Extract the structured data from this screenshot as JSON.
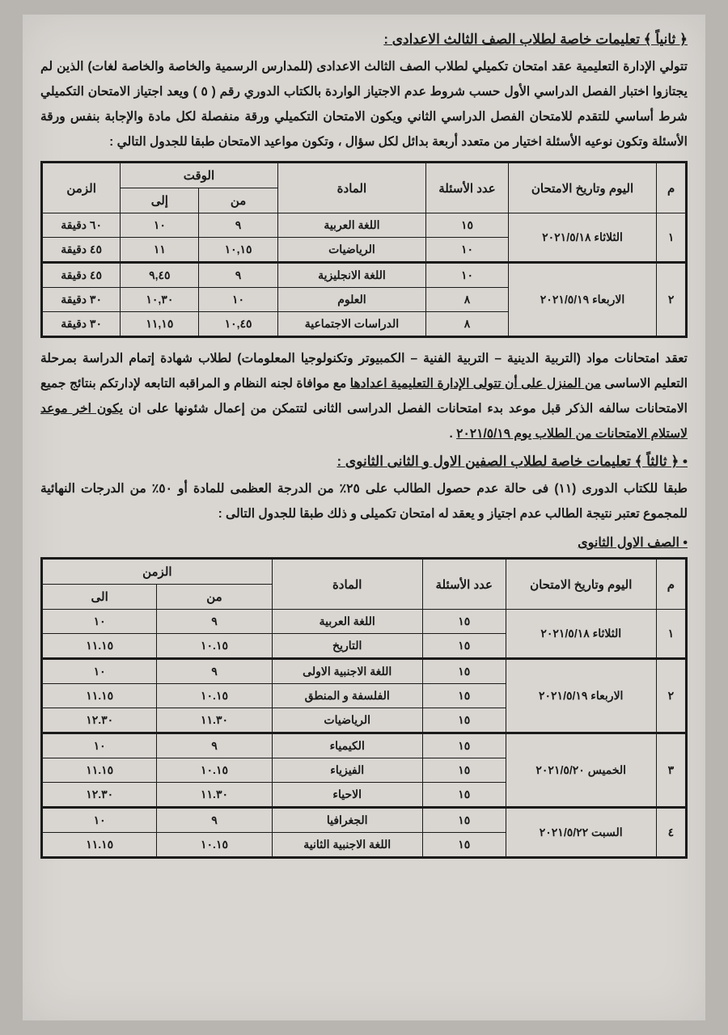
{
  "colors": {
    "page_bg": "#d9d6d2",
    "outer_bg": "#b8b4b0",
    "text": "#1a1a1a",
    "border": "#1a1a1a"
  },
  "section2": {
    "title": "﴿ ثانياً ﴾ تعليمات خاصة لطلاب الصف الثالث الاعدادى :",
    "para": "تتولي الإدارة التعليمية عقد امتحان تكميلي لطلاب الصف الثالث الاعدادى (للمدارس الرسمية والخاصة والخاصة لغات) الذين لم يجتازوا اختبار الفصل الدراسي الأول حسب شروط عدم الاجتياز الواردة بالكتاب الدوري رقم ( ٥ ) ويعد اجتياز الامتحان التكميلي شرط أساسي للتقدم للامتحان الفصل الدراسي الثاني ويكون الامتحان التكميلي ورقة منفصلة لكل مادة والإجابة بنفس ورقة الأسئلة وتكون نوعيه الأسئلة اختيار من متعدد أربعة بدائل لكل سؤال ، وتكون مواعيد الامتحان طبقا للجدول التالي :"
  },
  "table1": {
    "headers": {
      "idx": "م",
      "date": "اليوم وتاريخ الامتحان",
      "questions": "عدد الأسئلة",
      "subject": "المادة",
      "time": "الوقت",
      "from": "من",
      "to": "إلى",
      "duration": "الزمن"
    },
    "groups": [
      {
        "idx": "١",
        "date": "الثلاثاء  ٢٠٢١/٥/١٨",
        "rows": [
          {
            "q": "١٥",
            "subj": "اللغة العربية",
            "from": "٩",
            "to": "١٠",
            "dur": "٦٠ دقيقة"
          },
          {
            "q": "١٠",
            "subj": "الرياضيات",
            "from": "١٠,١٥",
            "to": "١١",
            "dur": "٤٥ دقيقة"
          }
        ]
      },
      {
        "idx": "٢",
        "date": "الاربعاء  ٢٠٢١/٥/١٩",
        "rows": [
          {
            "q": "١٠",
            "subj": "اللغة الانجليزية",
            "from": "٩",
            "to": "٩,٤٥",
            "dur": "٤٥ دقيقة"
          },
          {
            "q": "٨",
            "subj": "العلوم",
            "from": "١٠",
            "to": "١٠,٣٠",
            "dur": "٣٠ دقيقة"
          },
          {
            "q": "٨",
            "subj": "الدراسات الاجتماعية",
            "from": "١٠,٤٥",
            "to": "١١,١٥",
            "dur": "٣٠ دقيقة"
          }
        ]
      }
    ]
  },
  "mid_para": {
    "p1_a": "تعقد امتحانات مواد (التربية الدينية – التربية الفنية – الكمبيوتر وتكنولوجيا المعلومات) لطلاب شهادة إتمام الدراسة بمرحلة التعليم الاساسى ",
    "p1_u1": "من المنزل على أن تتولى الإدارة التعليمية اعدادها",
    "p1_b": " مع موافاة لجنه النظام و المراقبه التابعه لإدارتكم بنتائج جميع الامتحانات سالفه الذكر  قبل موعد بدء امتحانات الفصل الدراسى الثانى لتتمكن من إعمال شئونها على ان ",
    "p1_u2": "يكون اخر موعد لاستلام الامتحانات من الطلاب يوم ٢٠٢١/٥/١٩",
    "p1_c": " ."
  },
  "section3": {
    "title": "﴿ ثالثاً ﴾ تعليمات خاصة لطلاب الصفين الاول و الثانى الثانوى :",
    "para": "طبقا للكتاب الدورى (١١) فى حالة عدم حصول الطالب على ٢٥٪ من الدرجة العظمى للمادة أو ٥٠٪ من الدرجات النهائية للمجموع تعتبر نتيجة الطالب عدم اجتياز و يعقد له امتحان تكميلى و ذلك طبقا للجدول التالى :"
  },
  "sub_head": "الصف الاول الثانوى",
  "table2": {
    "headers": {
      "idx": "م",
      "date": "اليوم وتاريخ الامتحان",
      "questions": "عدد الأسئلة",
      "subject": "المادة",
      "time": "الزمن",
      "from": "من",
      "to": "الى"
    },
    "groups": [
      {
        "idx": "١",
        "date": "الثلاثاء  ٢٠٢١/٥/١٨",
        "rows": [
          {
            "q": "١٥",
            "subj": "اللغة العربية",
            "from": "٩",
            "to": "١٠"
          },
          {
            "q": "١٥",
            "subj": "التاريخ",
            "from": "١٠.١٥",
            "to": "١١.١٥"
          }
        ]
      },
      {
        "idx": "٢",
        "date": "الاربعاء  ٢٠٢١/٥/١٩",
        "rows": [
          {
            "q": "١٥",
            "subj": "اللغة الاجنبية الاولى",
            "from": "٩",
            "to": "١٠"
          },
          {
            "q": "١٥",
            "subj": "الفلسفة و المنطق",
            "from": "١٠.١٥",
            "to": "١١.١٥"
          },
          {
            "q": "١٥",
            "subj": "الرياضيات",
            "from": "١١.٣٠",
            "to": "١٢.٣٠"
          }
        ]
      },
      {
        "idx": "٣",
        "date": "الخميس  ٢٠٢١/٥/٢٠",
        "rows": [
          {
            "q": "١٥",
            "subj": "الكيمياء",
            "from": "٩",
            "to": "١٠"
          },
          {
            "q": "١٥",
            "subj": "الفيزياء",
            "from": "١٠.١٥",
            "to": "١١.١٥"
          },
          {
            "q": "١٥",
            "subj": "الاحياء",
            "from": "١١.٣٠",
            "to": "١٢.٣٠"
          }
        ]
      },
      {
        "idx": "٤",
        "date": "السبت  ٢٠٢١/٥/٢٢",
        "rows": [
          {
            "q": "١٥",
            "subj": "الجغرافيا",
            "from": "٩",
            "to": "١٠"
          },
          {
            "q": "١٥",
            "subj": "اللغة الاجنبية الثانية",
            "from": "١٠.١٥",
            "to": "١١.١٥"
          }
        ]
      }
    ]
  }
}
